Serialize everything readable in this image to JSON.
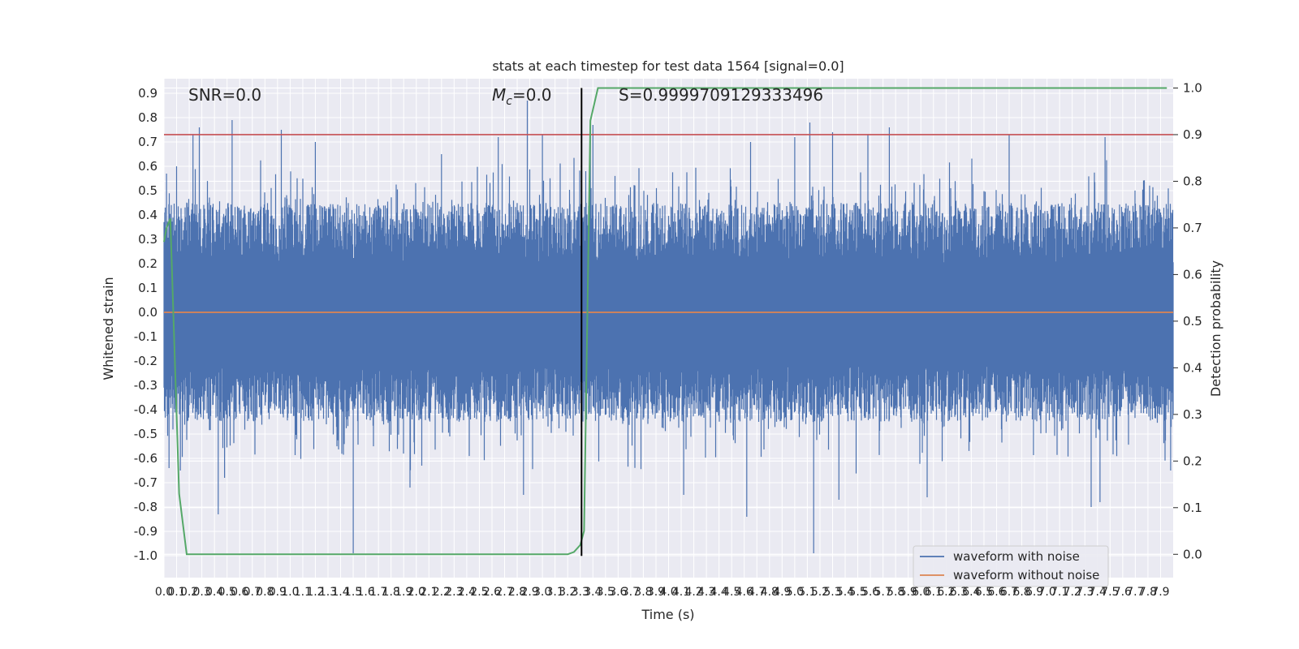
{
  "chart_data": {
    "type": "line",
    "title": "stats at each timestep for test data 1564 [signal=0.0]",
    "xlabel": "Time (s)",
    "ylabel": "Whitened strain",
    "y2label": "Detection probability",
    "xlim": [
      0.0,
      8.0
    ],
    "ylim": [
      -1.09,
      0.96
    ],
    "y2lim": [
      -0.05,
      1.02
    ],
    "x_ticks": [
      0.0,
      0.1,
      0.2,
      0.3,
      0.4,
      0.5,
      0.6,
      0.7,
      0.8,
      0.9,
      1.0,
      1.1,
      1.2,
      1.3,
      1.4,
      1.5,
      1.6,
      1.7,
      1.8,
      1.9,
      2.0,
      2.1,
      2.2,
      2.3,
      2.4,
      2.5,
      2.6,
      2.7,
      2.8,
      2.9,
      3.0,
      3.1,
      3.2,
      3.3,
      3.4,
      3.5,
      3.6,
      3.7,
      3.8,
      3.9,
      4.0,
      4.1,
      4.2,
      4.3,
      4.4,
      4.5,
      4.6,
      4.7,
      4.8,
      4.9,
      5.0,
      5.1,
      5.2,
      5.3,
      5.4,
      5.5,
      5.6,
      5.7,
      5.8,
      5.9,
      6.0,
      6.1,
      6.2,
      6.3,
      6.4,
      6.5,
      6.6,
      6.7,
      6.8,
      6.9,
      7.0,
      7.1,
      7.2,
      7.3,
      7.4,
      7.5,
      7.6,
      7.7,
      7.8,
      7.9
    ],
    "y_ticks": [
      -1.0,
      -0.9,
      -0.8,
      -0.7,
      -0.6,
      -0.5,
      -0.4,
      -0.3,
      -0.2,
      -0.1,
      0.0,
      0.1,
      0.2,
      0.3,
      0.4,
      0.5,
      0.6,
      0.7,
      0.8,
      0.9
    ],
    "y2_ticks": [
      0.0,
      0.1,
      0.2,
      0.3,
      0.4,
      0.5,
      0.6,
      0.7,
      0.8,
      0.9,
      1.0
    ],
    "grid": true,
    "legend_position": "lower right",
    "series": [
      {
        "name": "waveform with noise",
        "color": "#4c72b0",
        "axis": "left",
        "sampling": "dense noise, 8 s",
        "band": {
          "core_min": -0.45,
          "core_max": 0.45
        },
        "spikes": [
          {
            "x": 0.02,
            "y": 0.57
          },
          {
            "x": 0.04,
            "y": -0.64
          },
          {
            "x": 0.1,
            "y": 0.6
          },
          {
            "x": 0.13,
            "y": -0.65
          },
          {
            "x": 0.23,
            "y": 0.73
          },
          {
            "x": 0.28,
            "y": 0.76
          },
          {
            "x": 0.43,
            "y": -0.83
          },
          {
            "x": 0.48,
            "y": -0.68
          },
          {
            "x": 0.54,
            "y": 0.79
          },
          {
            "x": 0.93,
            "y": 0.75
          },
          {
            "x": 1.2,
            "y": 0.7
          },
          {
            "x": 1.5,
            "y": -0.99
          },
          {
            "x": 1.95,
            "y": -0.72
          },
          {
            "x": 2.2,
            "y": 0.65
          },
          {
            "x": 2.65,
            "y": 0.72
          },
          {
            "x": 2.85,
            "y": -0.75
          },
          {
            "x": 2.88,
            "y": 0.87
          },
          {
            "x": 3.0,
            "y": 0.73
          },
          {
            "x": 3.38,
            "y": 0.77
          },
          {
            "x": 3.4,
            "y": 0.77
          },
          {
            "x": 4.12,
            "y": -0.75
          },
          {
            "x": 4.65,
            "y": 0.7
          },
          {
            "x": 4.62,
            "y": -0.84
          },
          {
            "x": 5.0,
            "y": 0.72
          },
          {
            "x": 5.12,
            "y": 0.78
          },
          {
            "x": 5.15,
            "y": -0.99
          },
          {
            "x": 5.3,
            "y": 0.74
          },
          {
            "x": 5.35,
            "y": -0.77
          },
          {
            "x": 5.58,
            "y": 0.73
          },
          {
            "x": 5.75,
            "y": 0.76
          },
          {
            "x": 6.05,
            "y": -0.76
          },
          {
            "x": 6.7,
            "y": 0.73
          },
          {
            "x": 7.35,
            "y": -0.8
          },
          {
            "x": 7.42,
            "y": -0.78
          },
          {
            "x": 7.46,
            "y": 0.72
          },
          {
            "x": 7.98,
            "y": -0.65
          }
        ]
      },
      {
        "name": "waveform without noise",
        "color": "#dd8452",
        "axis": "left",
        "x": [
          0.0,
          8.0
        ],
        "y": [
          0.0,
          0.0
        ]
      },
      {
        "name": "",
        "color": "#55a868",
        "axis": "right",
        "x": [
          0.0,
          0.02,
          0.05,
          0.12,
          0.18,
          3.2,
          3.25,
          3.3,
          3.33,
          3.38,
          3.44,
          7.95
        ],
        "y": [
          0.67,
          0.7,
          0.72,
          0.13,
          0.0,
          0.0,
          0.005,
          0.02,
          0.05,
          0.93,
          1.0,
          1.0
        ]
      }
    ],
    "threshold_line": {
      "axis": "right",
      "y": 0.9,
      "color": "#c44e52"
    },
    "marker_line": {
      "x": 3.31,
      "color": "#000000"
    },
    "annotations": {
      "snr": "SNR=0.0",
      "mc": "=0.0",
      "mc_symbol": "M",
      "mc_subscript": "c",
      "s": "S=0.9999709129333496"
    }
  }
}
